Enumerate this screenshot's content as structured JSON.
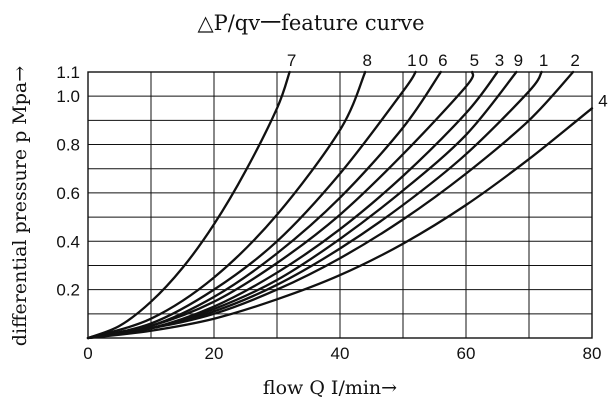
{
  "chart_data": {
    "type": "line",
    "title": "△P/qv一feature curve",
    "xlabel": "flow Q  I/min→",
    "ylabel": "differential pressure p  Mpa→",
    "xlim": [
      0,
      80
    ],
    "ylim": [
      0,
      1.1
    ],
    "x_ticks": [
      "0",
      "20",
      "40",
      "60",
      "80"
    ],
    "y_ticks": [
      "0.2",
      "0.4",
      "0.6",
      "0.8",
      "1.0",
      "1.1"
    ],
    "grid": true,
    "series": [
      {
        "name": "7",
        "values": [
          [
            0,
            0
          ],
          [
            5,
            0.05
          ],
          [
            10,
            0.15
          ],
          [
            15,
            0.29
          ],
          [
            20,
            0.47
          ],
          [
            25,
            0.69
          ],
          [
            30,
            0.95
          ],
          [
            32,
            1.1
          ]
        ]
      },
      {
        "name": "8",
        "values": [
          [
            0,
            0
          ],
          [
            10,
            0.08
          ],
          [
            20,
            0.25
          ],
          [
            30,
            0.51
          ],
          [
            40,
            0.86
          ],
          [
            44,
            1.1
          ]
        ]
      },
      {
        "name": "10",
        "values": [
          [
            0,
            0
          ],
          [
            10,
            0.06
          ],
          [
            20,
            0.2
          ],
          [
            30,
            0.4
          ],
          [
            40,
            0.68
          ],
          [
            50,
            1.02
          ],
          [
            52,
            1.1
          ]
        ]
      },
      {
        "name": "6",
        "values": [
          [
            0,
            0
          ],
          [
            10,
            0.05
          ],
          [
            20,
            0.17
          ],
          [
            30,
            0.35
          ],
          [
            40,
            0.58
          ],
          [
            50,
            0.87
          ],
          [
            56,
            1.1
          ]
        ]
      },
      {
        "name": "5",
        "values": [
          [
            0,
            0
          ],
          [
            10,
            0.05
          ],
          [
            20,
            0.15
          ],
          [
            30,
            0.31
          ],
          [
            40,
            0.51
          ],
          [
            50,
            0.76
          ],
          [
            60,
            1.04
          ],
          [
            61,
            1.1
          ]
        ]
      },
      {
        "name": "3",
        "values": [
          [
            0,
            0
          ],
          [
            10,
            0.04
          ],
          [
            20,
            0.13
          ],
          [
            30,
            0.27
          ],
          [
            40,
            0.45
          ],
          [
            50,
            0.67
          ],
          [
            60,
            0.93
          ],
          [
            65,
            1.1
          ]
        ]
      },
      {
        "name": "9",
        "values": [
          [
            0,
            0
          ],
          [
            10,
            0.04
          ],
          [
            20,
            0.12
          ],
          [
            30,
            0.24
          ],
          [
            40,
            0.41
          ],
          [
            50,
            0.61
          ],
          [
            60,
            0.84
          ],
          [
            68,
            1.1
          ]
        ]
      },
      {
        "name": "1",
        "values": [
          [
            0,
            0
          ],
          [
            10,
            0.04
          ],
          [
            20,
            0.11
          ],
          [
            30,
            0.22
          ],
          [
            40,
            0.37
          ],
          [
            50,
            0.55
          ],
          [
            60,
            0.76
          ],
          [
            70,
            1.02
          ],
          [
            72,
            1.1
          ]
        ]
      },
      {
        "name": "2",
        "values": [
          [
            0,
            0
          ],
          [
            10,
            0.04
          ],
          [
            20,
            0.1
          ],
          [
            30,
            0.2
          ],
          [
            40,
            0.33
          ],
          [
            50,
            0.49
          ],
          [
            60,
            0.68
          ],
          [
            70,
            0.9
          ],
          [
            77,
            1.1
          ]
        ]
      },
      {
        "name": "4",
        "values": [
          [
            0,
            0
          ],
          [
            10,
            0.03
          ],
          [
            20,
            0.08
          ],
          [
            30,
            0.16
          ],
          [
            40,
            0.26
          ],
          [
            50,
            0.39
          ],
          [
            60,
            0.55
          ],
          [
            70,
            0.74
          ],
          [
            80,
            0.95
          ]
        ]
      }
    ]
  }
}
